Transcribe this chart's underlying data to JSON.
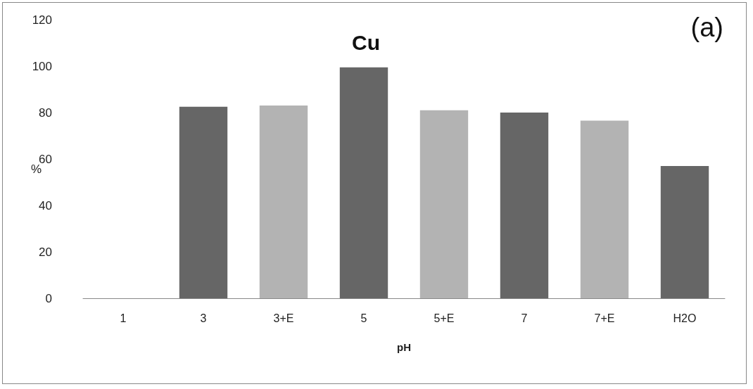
{
  "chart_data": {
    "type": "bar",
    "title": "Cu",
    "xlabel": "pH",
    "ylabel": "%",
    "annotations": [
      "(a)"
    ],
    "categories": [
      "1",
      "3",
      "3+E",
      "5",
      "5+E",
      "7",
      "7+E",
      "H2O"
    ],
    "values": [
      0,
      82.5,
      83,
      99.5,
      81,
      80,
      76.5,
      57
    ],
    "colors": [
      "#666666",
      "#666666",
      "#b3b3b3",
      "#666666",
      "#b3b3b3",
      "#666666",
      "#b3b3b3",
      "#666666"
    ],
    "ylim": [
      0,
      120
    ],
    "yticks": [
      0,
      20,
      40,
      60,
      80,
      100,
      120
    ],
    "grid": false
  }
}
